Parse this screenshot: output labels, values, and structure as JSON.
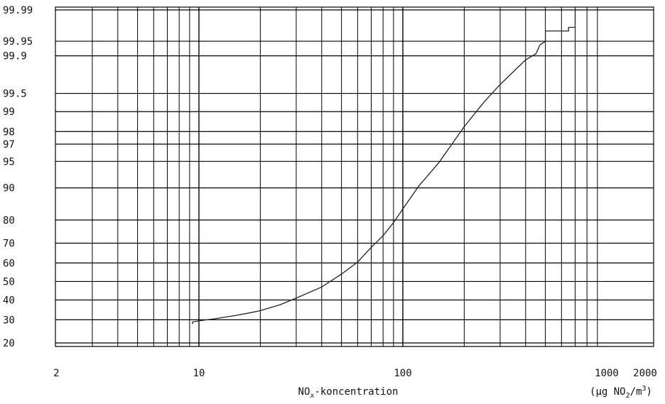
{
  "chart_data": {
    "type": "line",
    "title": "",
    "x_scale": "log",
    "y_scale": "normal-probability",
    "xlim": [
      2,
      1400
    ],
    "xticks": [
      2,
      10,
      100,
      1000,
      2000
    ],
    "xtick_labels": [
      "2",
      "10",
      "100",
      "1000",
      "2000"
    ],
    "yticks": [
      20,
      30,
      40,
      50,
      60,
      70,
      80,
      90,
      95,
      97,
      98,
      99,
      99.5,
      99.9,
      99.95,
      99.99
    ],
    "ytick_labels": [
      "20",
      "30",
      "40",
      "50",
      "60",
      "70",
      "80",
      "90",
      "95",
      "97",
      "98",
      "99",
      "99.5",
      "99.9",
      "99.95",
      "99.99"
    ],
    "xlabel": {
      "prefix": "NO",
      "sub": "x",
      "suffix": "-koncentration"
    },
    "unit": {
      "prefix": "(µg NO",
      "sub": "2",
      "mid": "/m",
      "sup": "3",
      "suffix": ")"
    },
    "grid": true,
    "series": [
      {
        "x": [
          9.3,
          9.3,
          10,
          12,
          15,
          18,
          20,
          25,
          30,
          40,
          50,
          60,
          70,
          80,
          90,
          100,
          120,
          150,
          200,
          250,
          300,
          350,
          400,
          450,
          470,
          500,
          500,
          650,
          650,
          700,
          700
        ],
        "y": [
          28,
          29,
          29.5,
          30.5,
          32,
          33.5,
          34.5,
          37.5,
          41,
          47,
          54,
          60.5,
          68,
          73.5,
          79,
          84,
          90.5,
          94.8,
          98.3,
          99.3,
          99.65,
          99.8,
          99.88,
          99.91,
          99.94,
          99.95,
          99.97,
          99.97,
          99.975,
          99.975,
          99.99
        ]
      }
    ]
  }
}
